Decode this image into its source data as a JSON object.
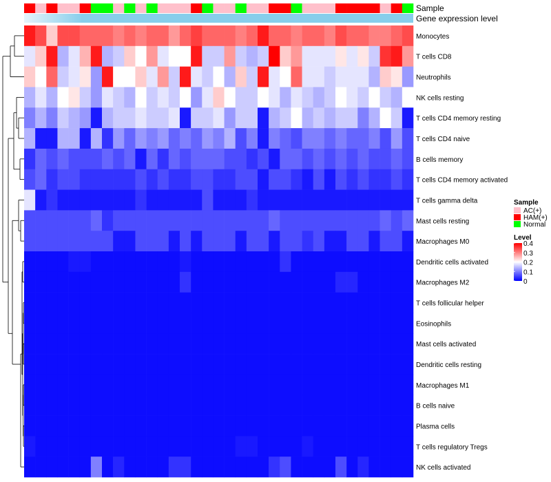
{
  "chart_data": {
    "type": "heatmap",
    "title": "",
    "annotation_tracks": [
      "Sample",
      "Gene expression level"
    ],
    "sample_groups": [
      {
        "name": "AC(+)",
        "color": "#FFC0CB"
      },
      {
        "name": "HAM(+)",
        "color": "#FF0000"
      },
      {
        "name": "Normal",
        "color": "#00FF00"
      }
    ],
    "column_samples": [
      "HAM(+)",
      "AC(+)",
      "HAM(+)",
      "AC(+)",
      "AC(+)",
      "HAM(+)",
      "Normal",
      "Normal",
      "AC(+)",
      "Normal",
      "AC(+)",
      "Normal",
      "AC(+)",
      "AC(+)",
      "AC(+)",
      "HAM(+)",
      "Normal",
      "AC(+)",
      "AC(+)",
      "Normal",
      "AC(+)",
      "AC(+)",
      "HAM(+)",
      "HAM(+)",
      "Normal",
      "AC(+)",
      "AC(+)",
      "AC(+)",
      "HAM(+)",
      "HAM(+)",
      "HAM(+)",
      "HAM(+)",
      "AC(+)",
      "HAM(+)",
      "Normal"
    ],
    "gene_expression_color": "#87CEEB",
    "rows": [
      "Monocytes",
      "T cells CD8",
      "Neutrophils",
      "NK cells resting",
      "T cells CD4 memory resting",
      "T cells CD4 naive",
      "B cells memory",
      "T cells CD4 memory activated",
      "T cells gamma delta",
      "Mast cells resting",
      "Macrophages M0",
      "Dendritic cells activated",
      "Macrophages M2",
      "T cells follicular helper",
      "Eosinophils",
      "Mast cells activated",
      "Dendritic cells resting",
      "Macrophages M1",
      "B cells naive",
      "Plasma cells",
      "T cells regulatory  Tregs",
      "NK cells activated"
    ],
    "values": [
      [
        0.38,
        0.34,
        0.24,
        0.34,
        0.34,
        0.32,
        0.32,
        0.32,
        0.3,
        0.32,
        0.3,
        0.32,
        0.32,
        0.28,
        0.32,
        0.35,
        0.32,
        0.32,
        0.32,
        0.3,
        0.32,
        0.38,
        0.32,
        0.32,
        0.3,
        0.32,
        0.32,
        0.3,
        0.34,
        0.32,
        0.32,
        0.3,
        0.3,
        0.32,
        0.34
      ],
      [
        0.18,
        0.24,
        0.38,
        0.14,
        0.18,
        0.26,
        0.38,
        0.14,
        0.16,
        0.24,
        0.2,
        0.28,
        0.18,
        0.2,
        0.2,
        0.38,
        0.16,
        0.16,
        0.28,
        0.16,
        0.14,
        0.16,
        0.4,
        0.24,
        0.28,
        0.18,
        0.18,
        0.18,
        0.22,
        0.18,
        0.22,
        0.16,
        0.36,
        0.38,
        0.28
      ],
      [
        0.24,
        0.2,
        0.32,
        0.16,
        0.18,
        0.22,
        0.12,
        0.38,
        0.2,
        0.2,
        0.24,
        0.18,
        0.28,
        0.16,
        0.38,
        0.18,
        0.16,
        0.2,
        0.14,
        0.24,
        0.16,
        0.38,
        0.18,
        0.2,
        0.32,
        0.18,
        0.18,
        0.16,
        0.18,
        0.18,
        0.18,
        0.14,
        0.24,
        0.22,
        0.12
      ],
      [
        0.14,
        0.18,
        0.14,
        0.2,
        0.22,
        0.16,
        0.12,
        0.18,
        0.16,
        0.14,
        0.2,
        0.16,
        0.18,
        0.16,
        0.2,
        0.12,
        0.18,
        0.24,
        0.2,
        0.16,
        0.16,
        0.2,
        0.18,
        0.14,
        0.18,
        0.16,
        0.14,
        0.16,
        0.2,
        0.18,
        0.16,
        0.2,
        0.16,
        0.14,
        0.2
      ],
      [
        0.1,
        0.14,
        0.1,
        0.16,
        0.14,
        0.12,
        0.02,
        0.14,
        0.16,
        0.16,
        0.18,
        0.16,
        0.16,
        0.18,
        0.02,
        0.16,
        0.16,
        0.18,
        0.12,
        0.16,
        0.16,
        0.02,
        0.14,
        0.16,
        0.2,
        0.14,
        0.16,
        0.14,
        0.16,
        0.16,
        0.1,
        0.14,
        0.2,
        0.16,
        0.02
      ],
      [
        0.14,
        0.02,
        0.02,
        0.14,
        0.14,
        0.02,
        0.14,
        0.04,
        0.12,
        0.08,
        0.12,
        0.1,
        0.12,
        0.08,
        0.1,
        0.08,
        0.12,
        0.1,
        0.14,
        0.06,
        0.1,
        0.02,
        0.1,
        0.08,
        0.06,
        0.1,
        0.1,
        0.08,
        0.1,
        0.08,
        0.08,
        0.1,
        0.06,
        0.12,
        0.06
      ],
      [
        0.04,
        0.08,
        0.06,
        0.08,
        0.06,
        0.06,
        0.06,
        0.08,
        0.06,
        0.08,
        0.02,
        0.08,
        0.04,
        0.08,
        0.06,
        0.08,
        0.08,
        0.08,
        0.06,
        0.06,
        0.04,
        0.06,
        0.02,
        0.08,
        0.08,
        0.06,
        0.08,
        0.06,
        0.08,
        0.06,
        0.08,
        0.06,
        0.06,
        0.08,
        0.06
      ],
      [
        0.06,
        0.08,
        0.04,
        0.06,
        0.06,
        0.04,
        0.04,
        0.04,
        0.04,
        0.04,
        0.06,
        0.04,
        0.06,
        0.04,
        0.04,
        0.06,
        0.06,
        0.04,
        0.04,
        0.06,
        0.06,
        0.02,
        0.06,
        0.06,
        0.04,
        0.02,
        0.06,
        0.02,
        0.06,
        0.04,
        0.06,
        0.04,
        0.04,
        0.06,
        0.04
      ],
      [
        0.18,
        0.02,
        0.04,
        0.02,
        0.02,
        0.02,
        0.02,
        0.02,
        0.02,
        0.02,
        0.04,
        0.02,
        0.02,
        0.02,
        0.02,
        0.02,
        0.06,
        0.02,
        0.02,
        0.02,
        0.04,
        0.02,
        0.02,
        0.02,
        0.02,
        0.02,
        0.02,
        0.02,
        0.02,
        0.02,
        0.02,
        0.02,
        0.02,
        0.02,
        0.02
      ],
      [
        0.06,
        0.06,
        0.06,
        0.06,
        0.06,
        0.06,
        0.08,
        0.04,
        0.06,
        0.06,
        0.06,
        0.06,
        0.06,
        0.06,
        0.06,
        0.06,
        0.06,
        0.06,
        0.06,
        0.06,
        0.06,
        0.06,
        0.08,
        0.06,
        0.06,
        0.06,
        0.06,
        0.06,
        0.06,
        0.06,
        0.06,
        0.06,
        0.08,
        0.06,
        0.08
      ],
      [
        0.06,
        0.06,
        0.06,
        0.06,
        0.06,
        0.06,
        0.06,
        0.06,
        0.02,
        0.02,
        0.06,
        0.06,
        0.06,
        0.02,
        0.06,
        0.02,
        0.06,
        0.06,
        0.06,
        0.02,
        0.06,
        0.06,
        0.02,
        0.06,
        0.06,
        0.04,
        0.06,
        0.02,
        0.02,
        0.06,
        0.06,
        0.02,
        0.06,
        0.06,
        0.02
      ],
      [
        0.01,
        0.01,
        0.01,
        0.01,
        0.02,
        0.02,
        0.01,
        0.01,
        0.01,
        0.01,
        0.01,
        0.01,
        0.01,
        0.01,
        0.02,
        0.01,
        0.01,
        0.01,
        0.01,
        0.01,
        0.01,
        0.01,
        0.01,
        0.04,
        0.01,
        0.01,
        0.01,
        0.01,
        0.01,
        0.01,
        0.01,
        0.01,
        0.01,
        0.01,
        0.01
      ],
      [
        0.01,
        0.01,
        0.01,
        0.01,
        0.01,
        0.01,
        0.01,
        0.01,
        0.01,
        0.01,
        0.01,
        0.01,
        0.01,
        0.01,
        0.04,
        0.01,
        0.01,
        0.01,
        0.01,
        0.01,
        0.01,
        0.01,
        0.01,
        0.01,
        0.01,
        0.01,
        0.01,
        0.01,
        0.03,
        0.03,
        0.01,
        0.01,
        0.01,
        0.01,
        0.01
      ],
      [
        0.01,
        0.01,
        0.01,
        0.01,
        0.01,
        0.01,
        0.01,
        0.01,
        0.01,
        0.01,
        0.01,
        0.01,
        0.01,
        0.01,
        0.01,
        0.01,
        0.01,
        0.01,
        0.01,
        0.01,
        0.01,
        0.01,
        0.01,
        0.01,
        0.01,
        0.01,
        0.01,
        0.01,
        0.01,
        0.01,
        0.01,
        0.01,
        0.01,
        0.01,
        0.01
      ],
      [
        0.01,
        0.01,
        0.01,
        0.01,
        0.01,
        0.01,
        0.01,
        0.01,
        0.01,
        0.01,
        0.01,
        0.01,
        0.01,
        0.01,
        0.01,
        0.01,
        0.01,
        0.01,
        0.01,
        0.01,
        0.01,
        0.01,
        0.01,
        0.01,
        0.01,
        0.01,
        0.01,
        0.01,
        0.01,
        0.01,
        0.01,
        0.01,
        0.01,
        0.01,
        0.01
      ],
      [
        0.01,
        0.01,
        0.01,
        0.01,
        0.01,
        0.01,
        0.01,
        0.01,
        0.01,
        0.01,
        0.01,
        0.01,
        0.01,
        0.01,
        0.01,
        0.01,
        0.01,
        0.01,
        0.01,
        0.01,
        0.01,
        0.01,
        0.01,
        0.01,
        0.01,
        0.01,
        0.01,
        0.01,
        0.01,
        0.01,
        0.01,
        0.01,
        0.01,
        0.01,
        0.01
      ],
      [
        0.01,
        0.01,
        0.01,
        0.01,
        0.01,
        0.01,
        0.01,
        0.01,
        0.01,
        0.01,
        0.01,
        0.01,
        0.01,
        0.01,
        0.01,
        0.01,
        0.01,
        0.01,
        0.01,
        0.01,
        0.01,
        0.01,
        0.01,
        0.01,
        0.01,
        0.01,
        0.01,
        0.01,
        0.01,
        0.01,
        0.01,
        0.01,
        0.01,
        0.01,
        0.01
      ],
      [
        0.01,
        0.01,
        0.01,
        0.01,
        0.01,
        0.01,
        0.01,
        0.01,
        0.01,
        0.01,
        0.01,
        0.01,
        0.01,
        0.01,
        0.01,
        0.01,
        0.01,
        0.01,
        0.01,
        0.01,
        0.01,
        0.01,
        0.01,
        0.01,
        0.01,
        0.01,
        0.01,
        0.01,
        0.01,
        0.01,
        0.01,
        0.01,
        0.01,
        0.01,
        0.01
      ],
      [
        0.01,
        0.01,
        0.01,
        0.01,
        0.01,
        0.01,
        0.01,
        0.01,
        0.01,
        0.01,
        0.01,
        0.01,
        0.01,
        0.01,
        0.01,
        0.01,
        0.01,
        0.01,
        0.01,
        0.01,
        0.01,
        0.01,
        0.01,
        0.01,
        0.01,
        0.01,
        0.01,
        0.01,
        0.01,
        0.01,
        0.01,
        0.01,
        0.01,
        0.01,
        0.01
      ],
      [
        0.01,
        0.01,
        0.01,
        0.01,
        0.01,
        0.01,
        0.01,
        0.01,
        0.01,
        0.01,
        0.01,
        0.01,
        0.01,
        0.01,
        0.01,
        0.01,
        0.01,
        0.01,
        0.01,
        0.01,
        0.01,
        0.01,
        0.01,
        0.01,
        0.01,
        0.01,
        0.01,
        0.01,
        0.01,
        0.01,
        0.01,
        0.01,
        0.01,
        0.01,
        0.01
      ],
      [
        0.02,
        0.01,
        0.01,
        0.01,
        0.01,
        0.01,
        0.01,
        0.01,
        0.01,
        0.01,
        0.01,
        0.01,
        0.01,
        0.01,
        0.01,
        0.01,
        0.01,
        0.01,
        0.01,
        0.02,
        0.02,
        0.01,
        0.01,
        0.01,
        0.01,
        0.02,
        0.01,
        0.01,
        0.01,
        0.01,
        0.01,
        0.01,
        0.01,
        0.01,
        0.01
      ],
      [
        0.01,
        0.01,
        0.01,
        0.01,
        0.01,
        0.01,
        0.1,
        0.01,
        0.03,
        0.01,
        0.01,
        0.01,
        0.01,
        0.04,
        0.04,
        0.01,
        0.01,
        0.01,
        0.01,
        0.01,
        0.01,
        0.01,
        0.04,
        0.06,
        0.01,
        0.01,
        0.01,
        0.01,
        0.06,
        0.01,
        0.03,
        0.01,
        0.01,
        0.01,
        0.01
      ]
    ],
    "color_scale": {
      "title": "Level",
      "min": 0,
      "max": 0.4,
      "mid": 0.2,
      "low_color": "#0000FF",
      "mid_color": "#FFFFFF",
      "high_color": "#FF0000",
      "ticks": [
        0.4,
        0.3,
        0.2,
        0.1,
        0
      ]
    },
    "legend": {
      "sample_title": "Sample",
      "level_title": "Level",
      "placement": "right"
    }
  }
}
